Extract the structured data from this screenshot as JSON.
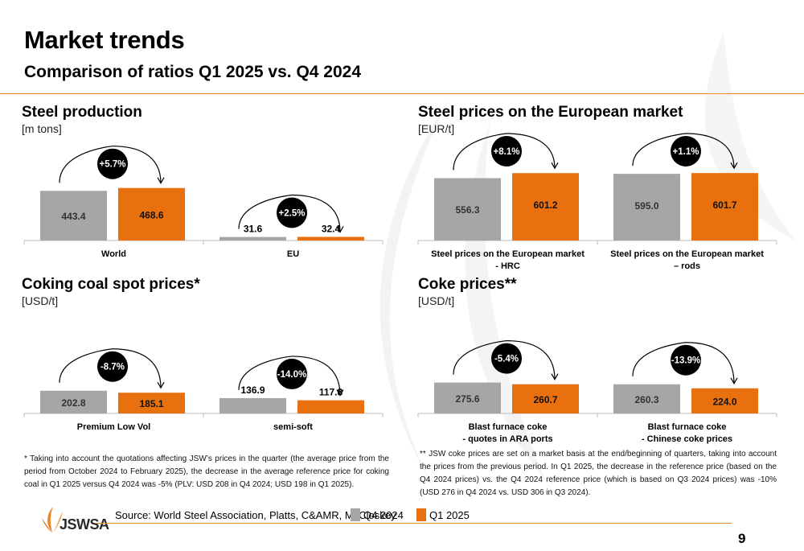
{
  "header": {
    "title": "Market trends",
    "subtitle": "Comparison of ratios Q1 2025 vs. Q4 2024"
  },
  "colors": {
    "q4": "#a6a6a6",
    "q1": "#e8700f",
    "accent": "#e8892b"
  },
  "chart_data": [
    {
      "type": "bar",
      "title": "Steel production",
      "unit": "[m tons]",
      "categories": [
        "World",
        "EU"
      ],
      "series": [
        {
          "name": "Q4 2024",
          "values": [
            443.4,
            31.6
          ]
        },
        {
          "name": "Q1 2025",
          "values": [
            468.6,
            32.4
          ]
        }
      ],
      "changes": [
        "+5.7%",
        "+2.5%"
      ]
    },
    {
      "type": "bar",
      "title": "Steel prices on the European market",
      "unit": "[EUR/t]",
      "categories": [
        [
          "Steel prices on the European market",
          "- HRC"
        ],
        [
          "Steel prices on the European market",
          "– rods"
        ]
      ],
      "series": [
        {
          "name": "Q4 2024",
          "values": [
            556.3,
            595.0
          ]
        },
        {
          "name": "Q1 2025",
          "values": [
            601.2,
            601.7
          ]
        }
      ],
      "changes": [
        "+8.1%",
        "+1.1%"
      ]
    },
    {
      "type": "bar",
      "title": "Coking coal spot prices*",
      "unit": "[USD/t]",
      "categories": [
        "Premium Low Vol",
        "semi-soft"
      ],
      "series": [
        {
          "name": "Q4 2024",
          "values": [
            202.8,
            136.9
          ]
        },
        {
          "name": "Q1 2025",
          "values": [
            185.1,
            117.8
          ]
        }
      ],
      "changes": [
        "-8.7%",
        "-14.0%"
      ]
    },
    {
      "type": "bar",
      "title": "Coke prices**",
      "unit": "[USD/t]",
      "categories": [
        [
          "Blast furnace coke",
          "- quotes in ARA ports"
        ],
        [
          "Blast furnace coke",
          "- Chinese coke prices"
        ]
      ],
      "series": [
        {
          "name": "Q4 2024",
          "values": [
            275.6,
            260.3
          ]
        },
        {
          "name": "Q1 2025",
          "values": [
            260.7,
            224.0
          ]
        }
      ],
      "changes": [
        "-5.4%",
        "-13.9%"
      ]
    }
  ],
  "footnotes": {
    "left": "* Taking into account the quotations affecting JSW’s prices in the quarter (the average price from the period from October 2024 to February 2025), the decrease in the average reference price for coking coal in Q1 2025 versus Q4 2024 was -5% (PLV: USD 208 in Q4 2024; USD 198 in Q1 2025).",
    "right": "** JSW coke prices are set on a market basis at the end/beginning of quarters, taking into account the prices from the previous period. In Q1 2025, the decrease in the reference price (based on the Q4 2024 prices) vs. the Q4 2024 reference price (which is based on Q3 2024 prices) was -10% (USD 276 in Q4 2024 vs. USD 306 in Q3 2024)."
  },
  "footer": {
    "source": "Source: World Steel Association, Platts, C&AMR, McCloskey",
    "legend": [
      "Q4 2024",
      "Q1 2025"
    ],
    "logo": "JSWSA",
    "page": "9"
  }
}
